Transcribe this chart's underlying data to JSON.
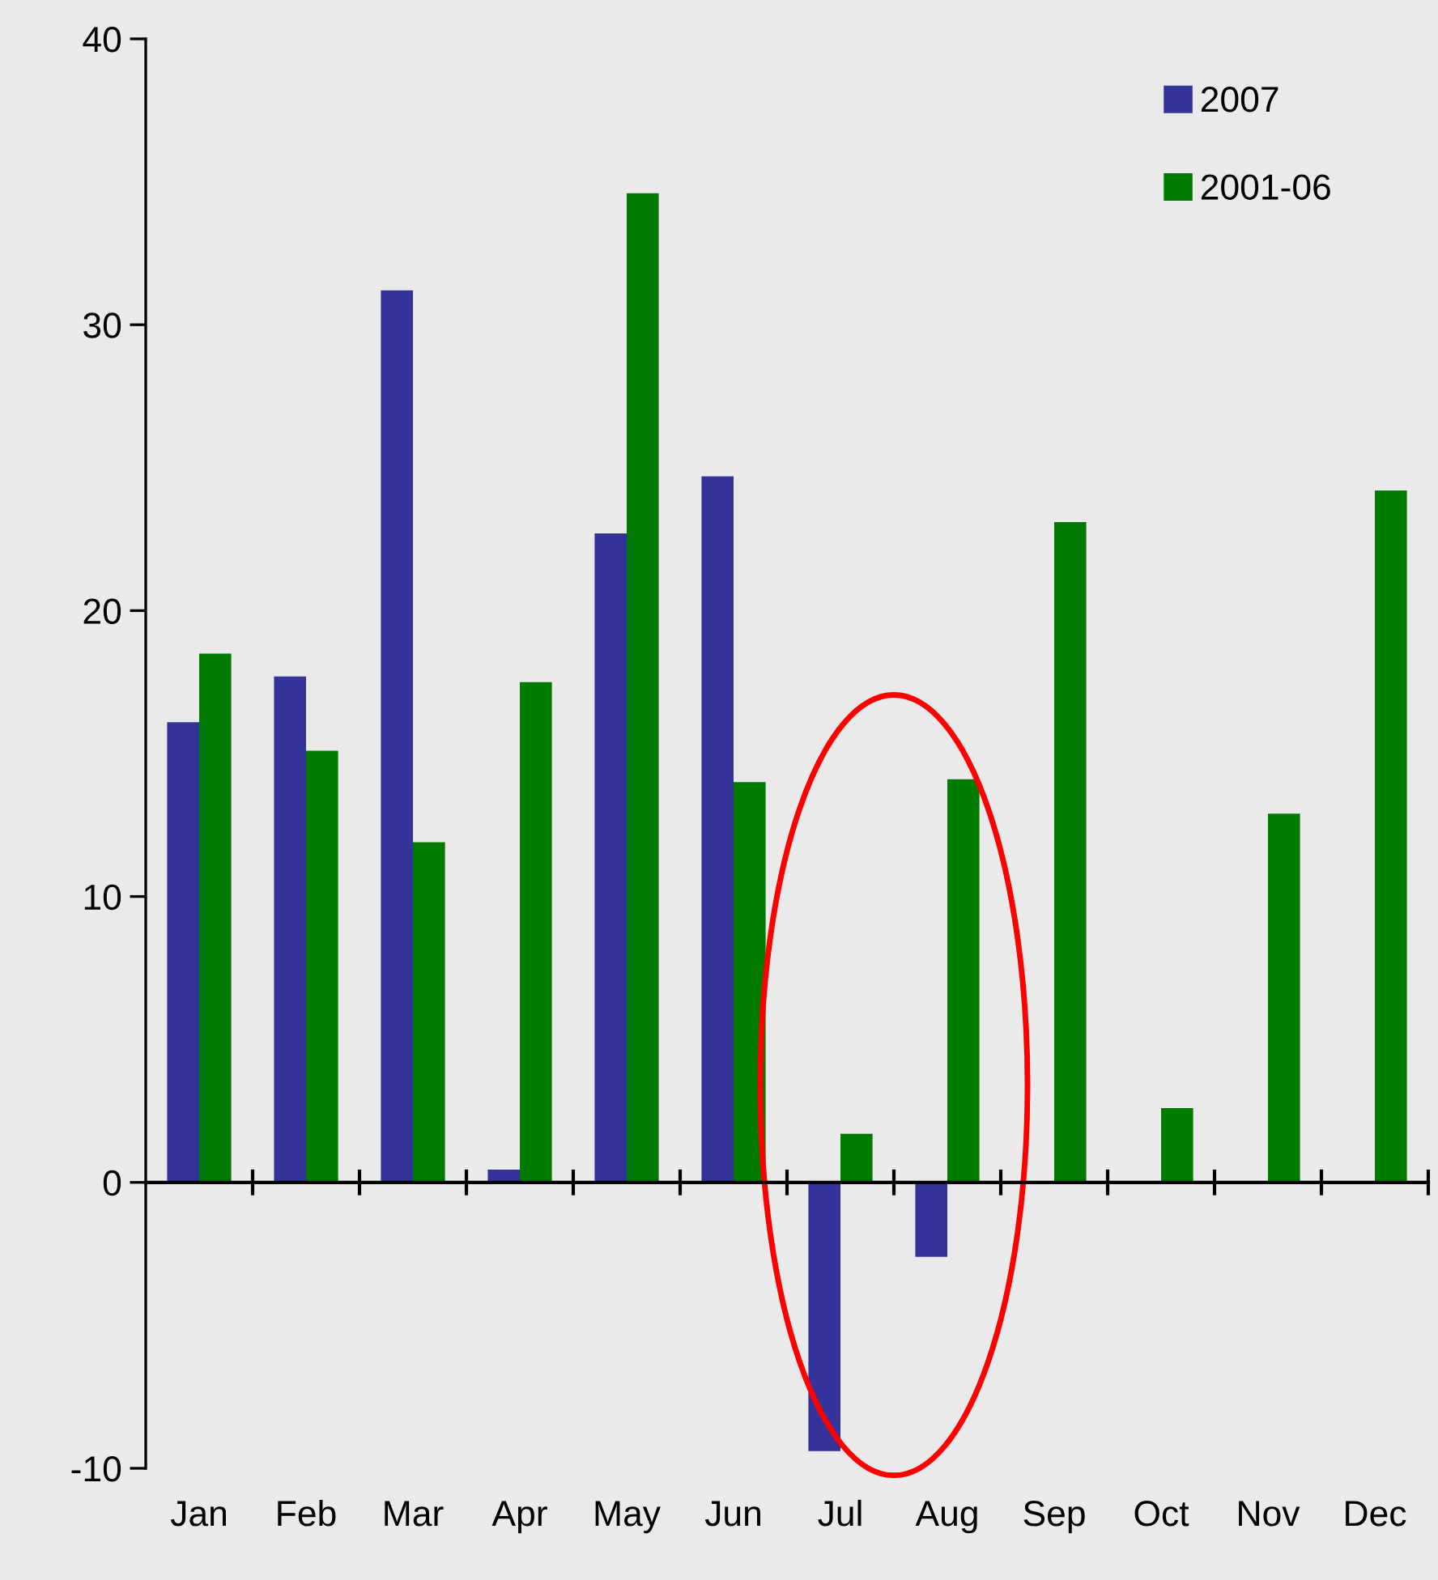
{
  "chart_data": {
    "type": "bar",
    "categories": [
      "Jan",
      "Feb",
      "Mar",
      "Apr",
      "May",
      "Jun",
      "Jul",
      "Aug",
      "Sep",
      "Oct",
      "Nov",
      "Dec"
    ],
    "series": [
      {
        "name": "2007",
        "color": "#333399",
        "values": [
          16.1,
          17.7,
          31.2,
          0.45,
          22.7,
          24.7,
          -9.4,
          -2.6,
          null,
          null,
          null,
          null
        ]
      },
      {
        "name": "2001-06",
        "color": "#007a00",
        "values": [
          18.5,
          15.1,
          11.9,
          17.5,
          34.6,
          14.0,
          1.7,
          14.1,
          23.1,
          2.6,
          12.9,
          24.2
        ]
      }
    ],
    "ylim": [
      -10,
      40
    ],
    "yticks": [
      -10,
      0,
      10,
      20,
      30,
      40
    ],
    "legend": "top right"
  }
}
